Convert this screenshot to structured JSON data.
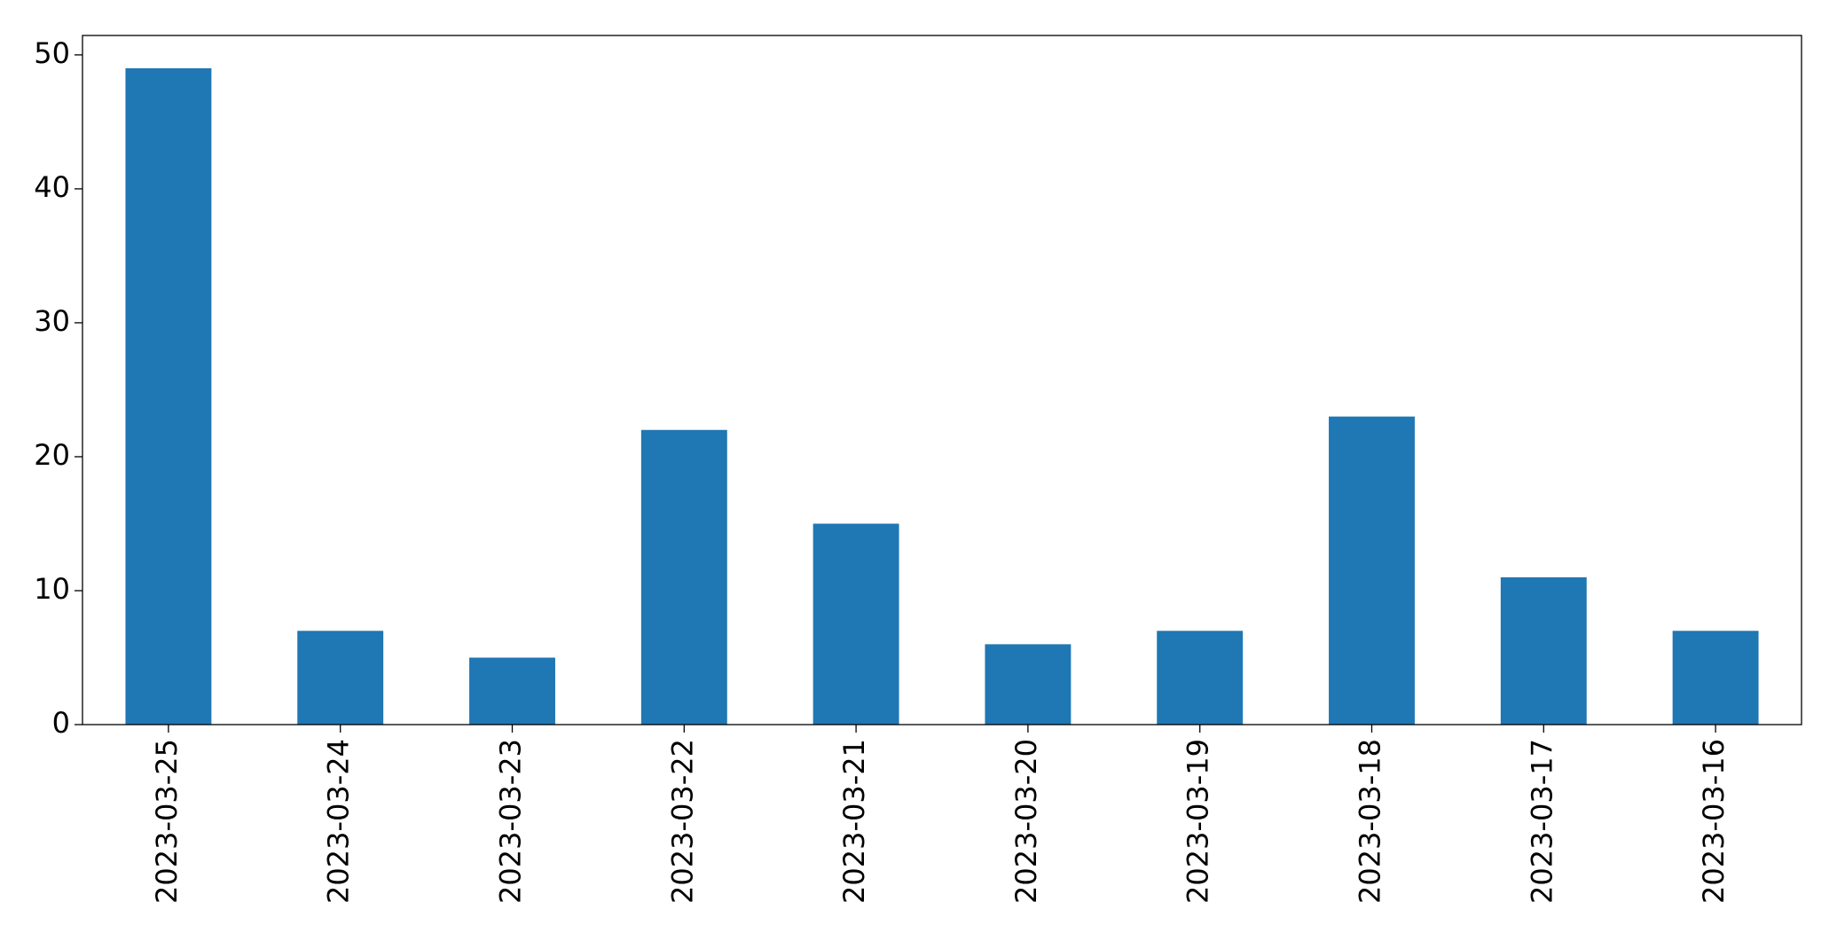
{
  "chart_data": {
    "type": "bar",
    "categories": [
      "2023-03-25",
      "2023-03-24",
      "2023-03-23",
      "2023-03-22",
      "2023-03-21",
      "2023-03-20",
      "2023-03-19",
      "2023-03-18",
      "2023-03-17",
      "2023-03-16"
    ],
    "values": [
      49,
      7,
      5,
      22,
      15,
      6,
      7,
      23,
      11,
      7
    ],
    "color": "#1f77b4",
    "ylim": [
      0,
      51.45
    ],
    "yticks": [
      0,
      10,
      20,
      30,
      40,
      50
    ],
    "grid": false
  }
}
